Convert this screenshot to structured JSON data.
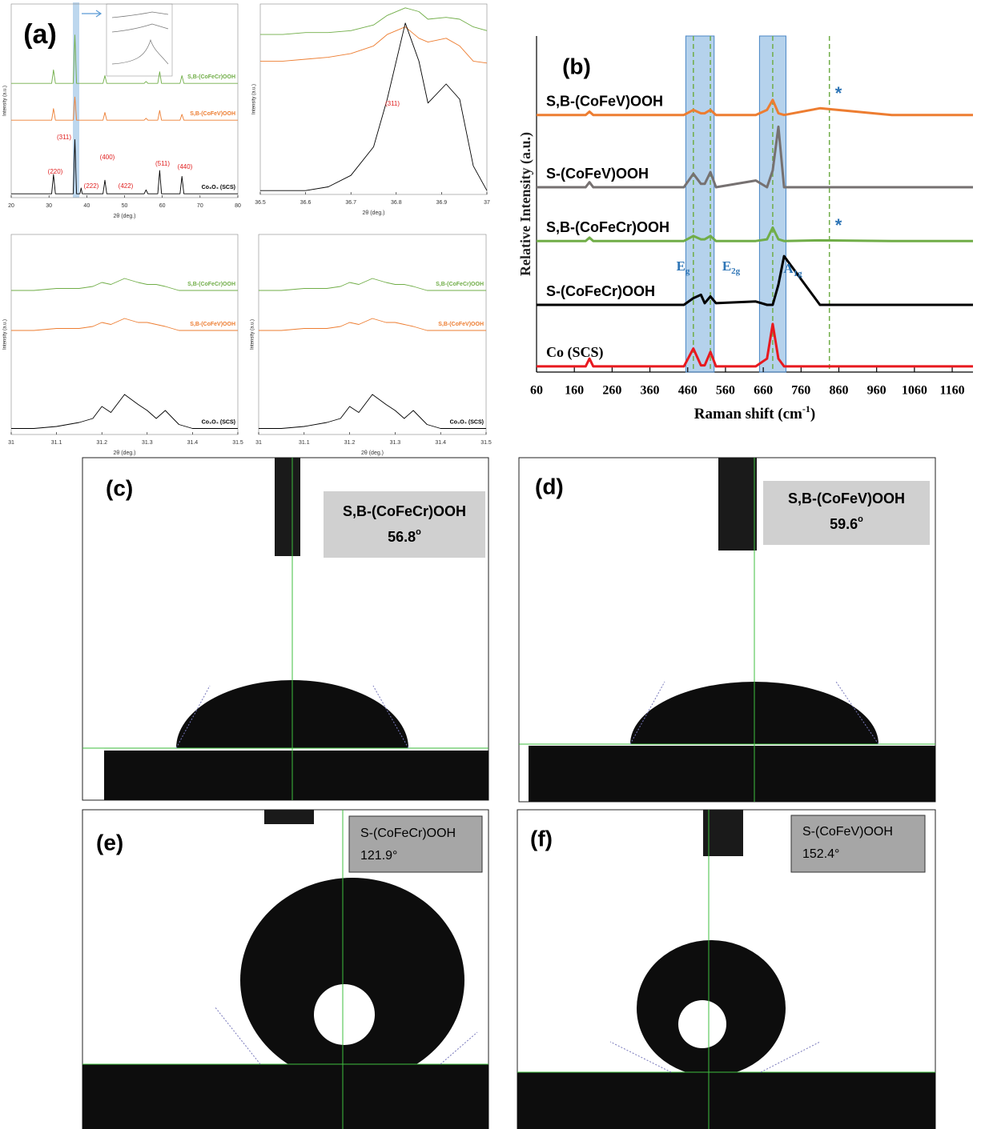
{
  "chart_data": [
    {
      "type": "line",
      "panel_label": "(a)",
      "x_label": "2θ (deg.)",
      "y_label": "Intensity (a.u.)",
      "xlim": [
        20,
        80
      ],
      "xticks": [
        20,
        30,
        40,
        50,
        60,
        70,
        80
      ],
      "ylim": [
        0,
        100
      ],
      "x": [
        20,
        30.7,
        31.2,
        31.7,
        36.4,
        36.85,
        37.3,
        38.2,
        38.5,
        38.8,
        44.3,
        44.8,
        45.3,
        55.2,
        55.7,
        56.2,
        58.8,
        59.3,
        59.8,
        64.7,
        65.2,
        65.7,
        80
      ],
      "series": [
        {
          "name": "S,B-(CoFeCr)OOH",
          "color": "#70ad47",
          "values": [
            59,
            59,
            66,
            59,
            59,
            84,
            59,
            59,
            59,
            59,
            59,
            63,
            59,
            59,
            60,
            59,
            59,
            65,
            59,
            59,
            63,
            59,
            59
          ]
        },
        {
          "name": "S,B-(CoFeV)OOH",
          "color": "#ed7d31",
          "values": [
            40,
            40,
            46,
            40,
            40,
            52,
            40,
            40,
            40,
            40,
            40,
            44,
            40,
            40,
            41,
            40,
            40,
            45,
            40,
            40,
            43,
            40,
            40
          ]
        },
        {
          "name": "Co₃O₄ (SCS)",
          "color": "#000000",
          "values": [
            2,
            2,
            12,
            2,
            2,
            30,
            2,
            2,
            5,
            2,
            2,
            9,
            2,
            2,
            4,
            2,
            2,
            14,
            2,
            2,
            11,
            2,
            2
          ]
        }
      ],
      "annotations": [
        "(311)",
        "(220)",
        "(222)",
        "(400)",
        "(422)",
        "(511)",
        "(440)"
      ]
    },
    {
      "type": "line",
      "x_label": "2θ (deg.)",
      "y_label": "Intensity (a.u.)",
      "xlim": [
        36.5,
        37
      ],
      "xticks": [
        36.5,
        36.6,
        36.7,
        36.8,
        36.9,
        37
      ],
      "ylim": [
        0,
        100
      ],
      "x": [
        36.5,
        36.55,
        36.6,
        36.65,
        36.7,
        36.75,
        36.78,
        36.82,
        36.85,
        36.87,
        36.91,
        36.94,
        36.97,
        37
      ],
      "series": [
        {
          "color": "#70ad47",
          "values": [
            84,
            84,
            85,
            85,
            86,
            89,
            94,
            98,
            96,
            92,
            93,
            92,
            88,
            86
          ]
        },
        {
          "color": "#ed7d31",
          "values": [
            70,
            70,
            71,
            72,
            74,
            78,
            84,
            88,
            82,
            80,
            82,
            78,
            70,
            69
          ]
        },
        {
          "color": "#000000",
          "values": [
            2,
            2,
            2,
            4,
            10,
            25,
            50,
            90,
            70,
            48,
            58,
            50,
            15,
            2
          ]
        }
      ],
      "annotations": [
        "(311)"
      ]
    },
    {
      "type": "line",
      "x_label": "2θ (deg.)",
      "y_label": "Intensity (a.u.)",
      "xlim": [
        31,
        31.5
      ],
      "xticks": [
        31,
        31.1,
        31.2,
        31.3,
        31.4,
        31.5
      ],
      "ylim": [
        0,
        100
      ],
      "x": [
        31,
        31.05,
        31.1,
        31.15,
        31.18,
        31.2,
        31.22,
        31.25,
        31.28,
        31.3,
        31.32,
        31.34,
        31.37,
        31.4,
        31.45,
        31.5
      ],
      "series": [
        {
          "name": "S,B-(CoFeCr)OOH",
          "color": "#70ad47",
          "values": [
            72,
            72,
            73,
            73,
            74,
            76,
            75,
            78,
            76,
            75,
            75,
            74,
            72,
            72,
            72,
            72
          ]
        },
        {
          "name": "S,B-(CoFeV)OOH",
          "color": "#ed7d31",
          "values": [
            52,
            52,
            53,
            53,
            54,
            56,
            55,
            58,
            56,
            56,
            55,
            54,
            52,
            52,
            52,
            52
          ]
        },
        {
          "name": "Co₃O₄ (SCS)",
          "color": "#000000",
          "values": [
            3,
            3,
            4,
            6,
            8,
            14,
            11,
            20,
            15,
            12,
            8,
            12,
            5,
            3,
            3,
            3
          ]
        }
      ]
    },
    {
      "type": "line",
      "x_label": "2θ (deg.)",
      "y_label": "Intensity (a.u.)",
      "xlim": [
        31,
        31.5
      ],
      "xticks": [
        31,
        31.1,
        31.2,
        31.3,
        31.4,
        31.5
      ],
      "ylim": [
        0,
        100
      ],
      "x": [
        31,
        31.05,
        31.1,
        31.15,
        31.18,
        31.2,
        31.22,
        31.25,
        31.28,
        31.3,
        31.32,
        31.34,
        31.37,
        31.4,
        31.45,
        31.5
      ],
      "series": [
        {
          "name": "S,B-(CoFeCr)OOH",
          "color": "#70ad47",
          "values": [
            72,
            72,
            73,
            73,
            74,
            76,
            75,
            78,
            76,
            75,
            75,
            74,
            72,
            72,
            72,
            72
          ]
        },
        {
          "name": "S,B-(CoFeV)OOH",
          "color": "#ed7d31",
          "values": [
            52,
            52,
            53,
            53,
            54,
            56,
            55,
            58,
            56,
            56,
            55,
            54,
            52,
            52,
            52,
            52
          ]
        },
        {
          "name": "Co₃O₄ (SCS)",
          "color": "#000000",
          "values": [
            3,
            3,
            4,
            6,
            8,
            14,
            11,
            20,
            15,
            12,
            8,
            12,
            5,
            3,
            3,
            3
          ]
        }
      ]
    },
    {
      "type": "line",
      "panel_label": "(b)",
      "x_label": [
        "Raman shift (cm",
        "-1",
        ")"
      ],
      "y_label": "Relative Intensity (a.u.)",
      "xlim": [
        60,
        1215
      ],
      "xticks": [
        60,
        160,
        260,
        360,
        460,
        560,
        660,
        760,
        860,
        960,
        1060,
        1160
      ],
      "ylim": [
        0,
        100
      ],
      "bands": [
        [
          455,
          530
        ],
        [
          650,
          720
        ]
      ],
      "reference_lines": [
        475,
        520,
        685,
        835
      ],
      "x": [
        60,
        190,
        200,
        210,
        450,
        475,
        495,
        505,
        520,
        535,
        640,
        670,
        685,
        700,
        715,
        810,
        1000,
        1215
      ],
      "series": [
        {
          "name": "S,B-(CoFeV)OOH",
          "color": "#ed7d31",
          "values": [
            76.5,
            76.5,
            77.5,
            76.5,
            76.5,
            78,
            77,
            77,
            78,
            76.5,
            76.5,
            78,
            81,
            77,
            76.5,
            78.5,
            76.5,
            76.5
          ]
        },
        {
          "name": "S-(CoFeV)OOH",
          "color": "#767171",
          "values": [
            55,
            55,
            56.5,
            55,
            55,
            59,
            56,
            56,
            59.5,
            55,
            57,
            55,
            60,
            73,
            55,
            55,
            55,
            55
          ]
        },
        {
          "name": "S,B-(CoFeCr)OOH",
          "color": "#70ad47",
          "values": [
            39,
            39,
            40,
            39,
            39,
            40.5,
            39.5,
            39.5,
            40.5,
            39,
            39,
            39.5,
            43,
            39.5,
            39,
            39.2,
            39,
            39
          ]
        },
        {
          "name": "S-(CoFeCr)OOH",
          "color": "#000000",
          "values": [
            20,
            20,
            20,
            20,
            20,
            22,
            23,
            20.5,
            22.5,
            20.5,
            21,
            20,
            20,
            26,
            34.5,
            20,
            20,
            20
          ]
        },
        {
          "name": "Co (SCS)",
          "color": "#e8191f",
          "values": [
            1.7,
            1.7,
            4,
            1.7,
            1.7,
            7,
            2,
            2,
            6,
            1.7,
            1.7,
            4,
            14.3,
            4,
            1.7,
            1.7,
            1.7,
            1.7
          ]
        }
      ],
      "annotations": [
        {
          "text": "E",
          "sub": "g"
        },
        {
          "text": "E",
          "sub": "2g"
        },
        {
          "text": "A",
          "sub": "1g"
        },
        "*",
        "*"
      ]
    }
  ],
  "photos": [
    {
      "label": "(c)",
      "sample": "S,B-(CoFeCr)OOH",
      "angle": "56.8",
      "unit": "o"
    },
    {
      "label": "(d)",
      "sample": "S,B-(CoFeV)OOH",
      "angle": "59.6",
      "unit": "o"
    },
    {
      "label": "(e)",
      "sample": "S-(CoFeCr)OOH",
      "angle": "121.9",
      "unit": "°"
    },
    {
      "label": "(f)",
      "sample": "S-(CoFeV)OOH",
      "angle": "152.4",
      "unit": "°"
    }
  ]
}
